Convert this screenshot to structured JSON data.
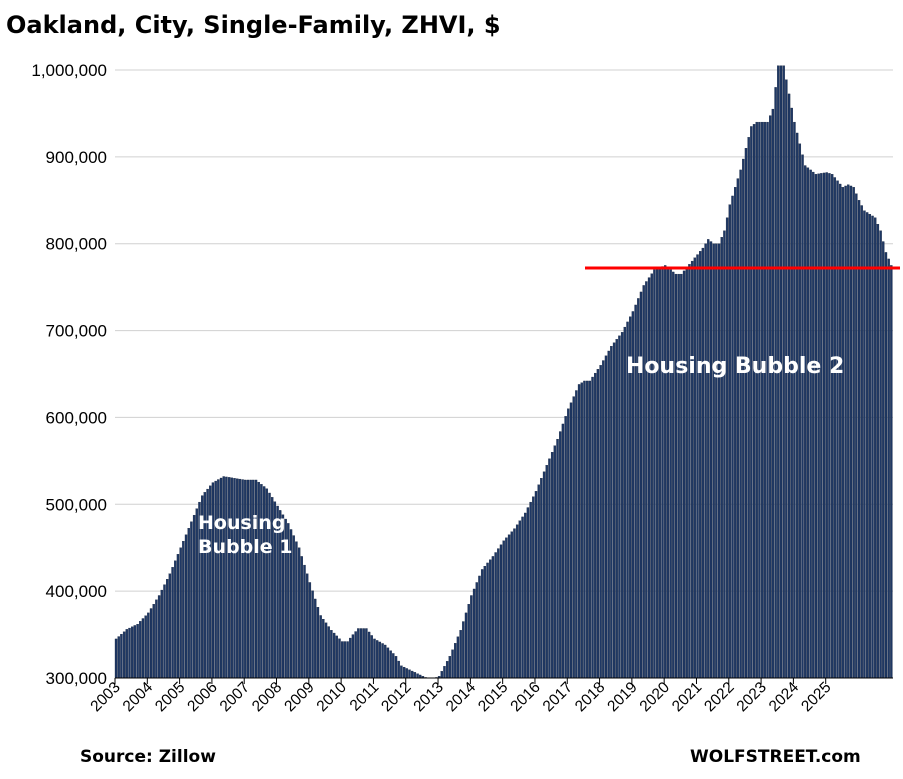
{
  "chart_data": {
    "type": "bar",
    "title": "Oakland, City, Single-Family, ZHVI, $",
    "xlabel": "",
    "ylabel": "",
    "ylim": [
      300000,
      1000000
    ],
    "yticks": [
      "1,000,000",
      "900,000",
      "800,000",
      "700,000",
      "600,000",
      "500,000",
      "400,000",
      "300,000"
    ],
    "year_labels": [
      "2003",
      "2004",
      "2005",
      "2006",
      "2007",
      "2008",
      "2009",
      "2010",
      "2011",
      "2012",
      "2013",
      "2014",
      "2015",
      "2016",
      "2017",
      "2018",
      "2019",
      "2020",
      "2021",
      "2022",
      "2023",
      "2024",
      "2025"
    ],
    "grid": true,
    "bar_color": "#1f3864",
    "anchors": [
      [
        0,
        345000
      ],
      [
        4,
        356000
      ],
      [
        8,
        362000
      ],
      [
        12,
        375000
      ],
      [
        16,
        395000
      ],
      [
        20,
        420000
      ],
      [
        24,
        450000
      ],
      [
        28,
        480000
      ],
      [
        32,
        510000
      ],
      [
        36,
        525000
      ],
      [
        40,
        532000
      ],
      [
        44,
        530000
      ],
      [
        48,
        528000
      ],
      [
        52,
        528000
      ],
      [
        56,
        518000
      ],
      [
        60,
        498000
      ],
      [
        64,
        478000
      ],
      [
        68,
        450000
      ],
      [
        72,
        410000
      ],
      [
        76,
        372000
      ],
      [
        80,
        355000
      ],
      [
        84,
        342000
      ],
      [
        86,
        342000
      ],
      [
        88,
        350000
      ],
      [
        90,
        357000
      ],
      [
        93,
        357000
      ],
      [
        96,
        345000
      ],
      [
        100,
        338000
      ],
      [
        104,
        325000
      ],
      [
        106,
        314000
      ],
      [
        110,
        308000
      ],
      [
        114,
        302000
      ],
      [
        117,
        298000
      ],
      [
        120,
        302000
      ],
      [
        124,
        325000
      ],
      [
        128,
        355000
      ],
      [
        132,
        395000
      ],
      [
        136,
        425000
      ],
      [
        140,
        440000
      ],
      [
        144,
        458000
      ],
      [
        148,
        472000
      ],
      [
        152,
        490000
      ],
      [
        156,
        515000
      ],
      [
        160,
        545000
      ],
      [
        164,
        575000
      ],
      [
        168,
        610000
      ],
      [
        172,
        638000
      ],
      [
        174,
        642000
      ],
      [
        176,
        642000
      ],
      [
        180,
        660000
      ],
      [
        184,
        682000
      ],
      [
        188,
        698000
      ],
      [
        192,
        722000
      ],
      [
        196,
        752000
      ],
      [
        200,
        770000
      ],
      [
        204,
        775000
      ],
      [
        208,
        765000
      ],
      [
        210,
        765000
      ],
      [
        214,
        780000
      ],
      [
        218,
        795000
      ],
      [
        220,
        805000
      ],
      [
        222,
        800000
      ],
      [
        224,
        800000
      ],
      [
        226,
        815000
      ],
      [
        228,
        845000
      ],
      [
        232,
        885000
      ],
      [
        236,
        935000
      ],
      [
        238,
        940000
      ],
      [
        242,
        940000
      ],
      [
        244,
        955000
      ],
      [
        246,
        1005000
      ],
      [
        248,
        1005000
      ],
      [
        252,
        940000
      ],
      [
        256,
        890000
      ],
      [
        260,
        880000
      ],
      [
        264,
        882000
      ],
      [
        266,
        880000
      ],
      [
        270,
        865000
      ],
      [
        272,
        868000
      ],
      [
        274,
        865000
      ],
      [
        276,
        850000
      ],
      [
        278,
        838000
      ],
      [
        282,
        830000
      ],
      [
        284,
        815000
      ],
      [
        286,
        790000
      ],
      [
        288,
        775000
      ]
    ],
    "reference_line": 772000,
    "annotations": [
      "Housing\nBubble 1",
      "Housing Bubble 2"
    ],
    "source": "Source: Zillow",
    "brand": "WOLFSTREET.com"
  }
}
